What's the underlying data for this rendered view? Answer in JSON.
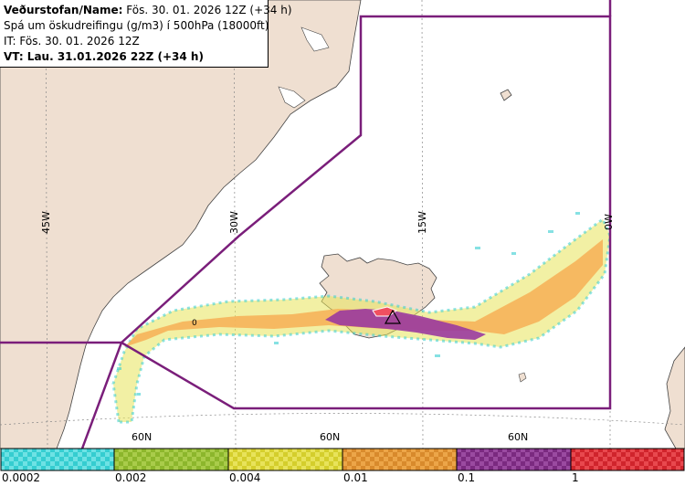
{
  "header": {
    "name_line": "Veðurstofan/Name: Fös. 30. 01. 2026 12Z (+34 h)",
    "product_line": "Spá um öskudreifingu (g/m3) í 500hPa (18000ft)",
    "it_line": "IT: Fös. 30. 01. 2026 12Z",
    "vt_line": "VT: Lau. 31.01.2026 22Z (+34 h)"
  },
  "map": {
    "longitude_labels": [
      "45W",
      "30W",
      "15W",
      "0W"
    ],
    "latitude_labels": [
      "60N",
      "60N",
      "60N"
    ],
    "contour_label": "0",
    "land_color": "#efdfd1",
    "sea_color": "#ffffff",
    "boundary_color": "#7a1e7a"
  },
  "legend": {
    "labels": [
      "0.0002",
      "0.002",
      "0.004",
      "0.01",
      "0.1",
      "1"
    ],
    "colors": [
      "#35cdd0",
      "#8cb62c",
      "#d4ce2c",
      "#d88a2c",
      "#7b2a80",
      "#d0242c"
    ]
  }
}
